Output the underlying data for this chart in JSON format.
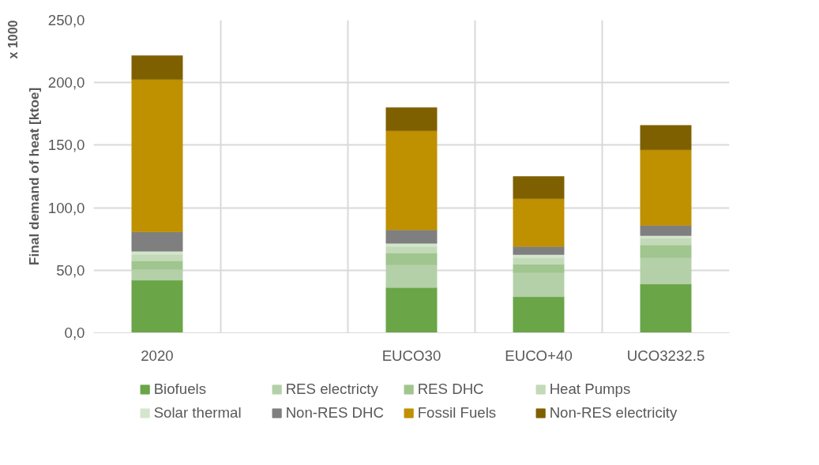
{
  "chart_data": {
    "type": "bar",
    "stacked": true,
    "ylabel": "Final demand of heat [ktoe]",
    "annotations": [
      "x 1000"
    ],
    "categories": [
      "2020",
      null,
      "EUCO30",
      "EUCO+40",
      "UCO3232.5"
    ],
    "series": [
      {
        "name": "Biofuels",
        "color": "#6aa548",
        "values": [
          42,
          null,
          36.2,
          28.8,
          39
        ]
      },
      {
        "name": "RES electricty",
        "color": "#b4d0a9",
        "values": [
          8.7,
          null,
          18.1,
          19.2,
          21
        ]
      },
      {
        "name": "RES DHC",
        "color": "#a0c58e",
        "values": [
          6.7,
          null,
          9.5,
          6.7,
          10.3
        ]
      },
      {
        "name": "Heat Pumps",
        "color": "#c3dab8",
        "values": [
          5.3,
          null,
          5.2,
          5.5,
          5.5
        ]
      },
      {
        "name": "Solar thermal",
        "color": "#d4e5cd",
        "values": [
          2.5,
          null,
          2.5,
          2.3,
          1.9
        ]
      },
      {
        "name": "Non-RES DHC",
        "color": "#7f7f7f",
        "values": [
          15.4,
          null,
          10.8,
          6.5,
          8.2
        ]
      },
      {
        "name": "Fossil Fuels",
        "color": "#bf9000",
        "values": [
          122,
          null,
          79.3,
          38.3,
          60.4
        ]
      },
      {
        "name": "Non-RES electricity",
        "color": "#7f6000",
        "values": [
          19,
          null,
          18.5,
          17.7,
          19.5
        ]
      }
    ],
    "ylim": [
      0,
      250
    ],
    "yticks": [
      {
        "value": 0,
        "label": "0,0"
      },
      {
        "value": 50,
        "label": "50,0"
      },
      {
        "value": 100,
        "label": "100,0"
      },
      {
        "value": 150,
        "label": "150,0"
      },
      {
        "value": 200,
        "label": "200,0"
      },
      {
        "value": 250,
        "label": "250,0"
      }
    ],
    "grid": true,
    "legend": "bottom"
  }
}
